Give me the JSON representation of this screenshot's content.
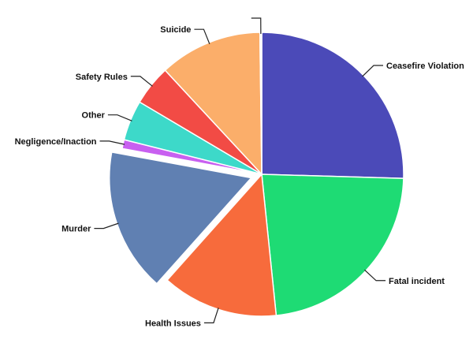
{
  "chart_data": {
    "type": "pie",
    "title": "",
    "slices": [
      {
        "label": "Ceasefire Violation",
        "value": 25.0,
        "color": "#4B4AB8"
      },
      {
        "label": "Fatal incident",
        "value": 22.5,
        "color": "#1EDB74"
      },
      {
        "label": "Health Issues",
        "value": 13.0,
        "color": "#F76B3C"
      },
      {
        "label": "Murder",
        "value": 16.0,
        "color": "#6080B2",
        "exploded": true
      },
      {
        "label": "Negligence/Inaction",
        "value": 1.0,
        "color": "#C860F0"
      },
      {
        "label": "Other",
        "value": 4.5,
        "color": "#3DD9C9"
      },
      {
        "label": "Safety Rules",
        "value": 4.5,
        "color": "#F24B45"
      },
      {
        "label": "Suicide",
        "value": 11.5,
        "color": "#FBAE6A"
      },
      {
        "label": "",
        "value": 0.2,
        "color": "#ffffff"
      }
    ]
  }
}
